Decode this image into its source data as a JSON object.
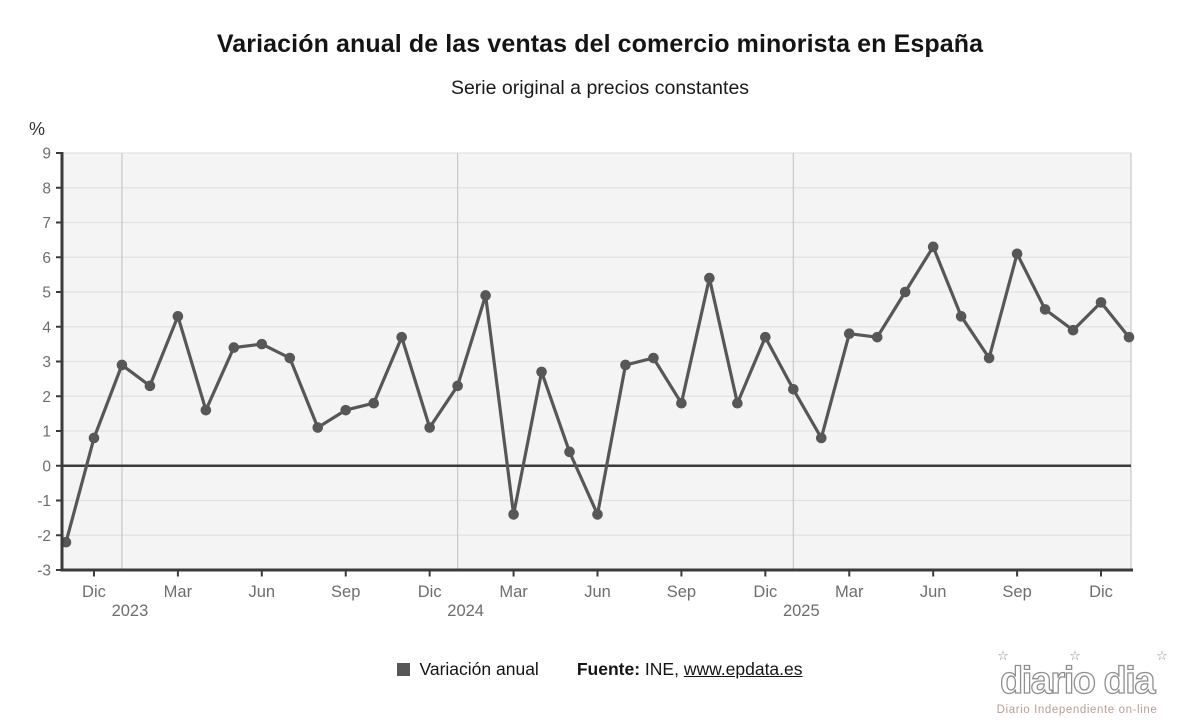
{
  "title": "Variación anual de las ventas del comercio minorista en España",
  "subtitle": "Serie original a precios constantes",
  "chart_data": {
    "type": "line",
    "title": "Variación anual de las ventas del comercio minorista en España",
    "subtitle": "Serie original a precios constantes",
    "ylabel": "%",
    "ylim": [
      -3,
      9
    ],
    "y_ticks": [
      9,
      8,
      7,
      6,
      5,
      4,
      3,
      2,
      1,
      0,
      -1,
      -2,
      -3
    ],
    "grid": true,
    "legend_position": "bottom",
    "line_color": "#57575a",
    "x": [
      "Nov 2022",
      "Dic 2022",
      "Ene 2023",
      "Feb 2023",
      "Mar 2023",
      "Abr 2023",
      "May 2023",
      "Jun 2023",
      "Jul 2023",
      "Ago 2023",
      "Sep 2023",
      "Oct 2023",
      "Nov 2023",
      "Dic 2023",
      "Ene 2024",
      "Feb 2024",
      "Mar 2024",
      "Abr 2024",
      "May 2024",
      "Jun 2024",
      "Jul 2024",
      "Ago 2024",
      "Sep 2024",
      "Oct 2024",
      "Nov 2024",
      "Dic 2024",
      "Ene 2025",
      "Feb 2025",
      "Mar 2025",
      "Abr 2025",
      "May 2025",
      "Jun 2025",
      "Jul 2025",
      "Ago 2025",
      "Sep 2025",
      "Oct 2025",
      "Nov 2025",
      "Dic 2025",
      "Ene 2026"
    ],
    "series": [
      {
        "name": "Variación anual",
        "values": [
          -2.2,
          0.8,
          2.9,
          2.3,
          4.3,
          1.6,
          3.4,
          3.5,
          3.1,
          1.1,
          1.6,
          1.8,
          3.7,
          1.1,
          2.3,
          4.9,
          -1.4,
          2.7,
          0.4,
          -1.4,
          2.9,
          3.1,
          1.8,
          5.4,
          1.8,
          3.7,
          2.2,
          0.8,
          3.8,
          3.7,
          5.0,
          6.3,
          4.3,
          3.1,
          6.1,
          4.5,
          3.9,
          4.7,
          3.7
        ]
      }
    ],
    "x_tick_indices": [
      1,
      4,
      7,
      10,
      13,
      16,
      19,
      22,
      25,
      28,
      31,
      34,
      37
    ],
    "x_tick_labels": [
      "Dic",
      "Mar",
      "Jun",
      "Sep",
      "Dic",
      "Mar",
      "Jun",
      "Sep",
      "Dic",
      "Mar",
      "Jun",
      "Sep",
      "Dic"
    ],
    "year_labels": [
      {
        "label": "2023",
        "index": 2
      },
      {
        "label": "2024",
        "index": 14
      },
      {
        "label": "2025",
        "index": 26
      }
    ]
  },
  "legend": {
    "label": "Variación anual",
    "marker_color": "#57575a"
  },
  "source": {
    "prefix": "Fuente:",
    "org": "INE,",
    "link": "www.epdata.es"
  },
  "watermark": {
    "logo": "diario dia",
    "tagline": "Diario Independiente on-line"
  }
}
